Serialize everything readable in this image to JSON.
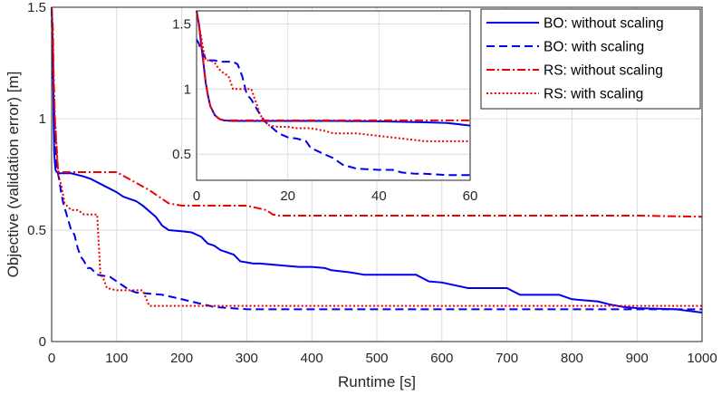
{
  "chart_data": [
    {
      "id": "main",
      "type": "line",
      "title": "",
      "xlabel": "Runtime [s]",
      "ylabel": "Objective (validation error) [m]",
      "xlim": [
        0,
        1000
      ],
      "ylim": [
        0,
        1.5
      ],
      "xticks": [
        0,
        100,
        200,
        300,
        400,
        500,
        600,
        700,
        800,
        900,
        1000
      ],
      "yticks": [
        0,
        0.5,
        1,
        1.5
      ],
      "ytick_labels": [
        "0",
        "0.5",
        "1",
        "1.5"
      ],
      "grid": true,
      "series": [
        {
          "name": "BO: without scaling",
          "color": "#0000ee",
          "dash": "solid",
          "x": [
            0,
            2,
            3,
            4,
            5,
            6,
            8,
            10,
            30,
            50,
            60,
            80,
            100,
            110,
            130,
            140,
            160,
            170,
            180,
            200,
            215,
            230,
            240,
            250,
            260,
            270,
            280,
            290,
            300,
            310,
            320,
            340,
            360,
            380,
            400,
            420,
            430,
            460,
            480,
            500,
            560,
            580,
            600,
            640,
            650,
            700,
            720,
            780,
            800,
            840,
            860,
            880,
            900,
            960,
            1000
          ],
          "y": [
            1.5,
            1.3,
            1.0,
            0.85,
            0.8,
            0.77,
            0.76,
            0.755,
            0.755,
            0.74,
            0.73,
            0.7,
            0.67,
            0.65,
            0.63,
            0.61,
            0.56,
            0.52,
            0.5,
            0.495,
            0.49,
            0.47,
            0.44,
            0.43,
            0.41,
            0.4,
            0.39,
            0.36,
            0.355,
            0.35,
            0.35,
            0.345,
            0.34,
            0.335,
            0.335,
            0.33,
            0.32,
            0.31,
            0.3,
            0.3,
            0.3,
            0.27,
            0.265,
            0.24,
            0.24,
            0.24,
            0.21,
            0.21,
            0.19,
            0.18,
            0.165,
            0.155,
            0.15,
            0.145,
            0.13
          ]
        },
        {
          "name": "BO: with scaling",
          "color": "#0000ee",
          "dash": "dashed",
          "x": [
            0,
            1,
            2,
            3,
            5,
            8,
            10,
            12,
            15,
            18,
            20,
            25,
            30,
            35,
            40,
            45,
            50,
            55,
            60,
            70,
            90,
            100,
            110,
            120,
            130,
            150,
            170,
            200,
            250,
            300,
            400,
            500,
            600,
            700,
            800,
            900,
            1000
          ],
          "y": [
            1.5,
            1.3,
            1.2,
            1.1,
            0.95,
            0.78,
            0.75,
            0.72,
            0.66,
            0.62,
            0.6,
            0.55,
            0.5,
            0.48,
            0.42,
            0.38,
            0.36,
            0.33,
            0.33,
            0.3,
            0.29,
            0.27,
            0.25,
            0.23,
            0.22,
            0.215,
            0.21,
            0.19,
            0.155,
            0.145,
            0.145,
            0.145,
            0.145,
            0.145,
            0.145,
            0.145,
            0.145
          ]
        },
        {
          "name": "RS: without scaling",
          "color": "#ee0000",
          "dash": "dashdot",
          "x": [
            0,
            2,
            3,
            5,
            10,
            20,
            40,
            60,
            80,
            100,
            125,
            150,
            160,
            180,
            200,
            250,
            300,
            330,
            340,
            350,
            400,
            500,
            600,
            700,
            800,
            900,
            1000
          ],
          "y": [
            1.5,
            1.4,
            1.2,
            1.0,
            0.76,
            0.76,
            0.76,
            0.76,
            0.76,
            0.76,
            0.72,
            0.68,
            0.66,
            0.62,
            0.61,
            0.61,
            0.61,
            0.59,
            0.57,
            0.565,
            0.565,
            0.565,
            0.565,
            0.565,
            0.565,
            0.565,
            0.56
          ]
        },
        {
          "name": "RS: with scaling",
          "color": "#ee0000",
          "dash": "dotted",
          "x": [
            0,
            3,
            5,
            8,
            10,
            15,
            20,
            30,
            40,
            50,
            60,
            70,
            75,
            80,
            85,
            100,
            120,
            140,
            150,
            170,
            200,
            400,
            600,
            800,
            1000
          ],
          "y": [
            1.5,
            1.2,
            1.0,
            0.85,
            0.75,
            0.7,
            0.62,
            0.59,
            0.59,
            0.57,
            0.57,
            0.57,
            0.3,
            0.28,
            0.24,
            0.23,
            0.23,
            0.23,
            0.16,
            0.16,
            0.16,
            0.16,
            0.16,
            0.16,
            0.16
          ]
        }
      ],
      "legend": {
        "position": "top-right",
        "entries": [
          "BO: without scaling",
          "BO: with scaling",
          "RS: without scaling",
          "RS: with scaling"
        ]
      }
    },
    {
      "id": "inset",
      "type": "line",
      "title": "",
      "xlabel": "",
      "ylabel": "",
      "xlim": [
        0,
        60
      ],
      "ylim": [
        0.3,
        1.6
      ],
      "xticks": [
        0,
        20,
        40,
        60
      ],
      "yticks": [
        0.5,
        1,
        1.5
      ],
      "ytick_labels": [
        "0.5",
        "1",
        "1.5"
      ],
      "grid": true,
      "series": [
        {
          "name": "BO: without scaling",
          "color": "#0000ee",
          "dash": "solid",
          "x": [
            0,
            0.5,
            1,
            1.5,
            2,
            2.5,
            3,
            4,
            5,
            6,
            8,
            10,
            20,
            30,
            40,
            50,
            55,
            60
          ],
          "y": [
            1.6,
            1.5,
            1.35,
            1.2,
            1.05,
            0.95,
            0.87,
            0.8,
            0.77,
            0.76,
            0.755,
            0.755,
            0.755,
            0.755,
            0.753,
            0.745,
            0.74,
            0.72
          ]
        },
        {
          "name": "BO: with scaling",
          "color": "#0000ee",
          "dash": "dashed",
          "x": [
            0,
            0.5,
            1,
            1.5,
            2,
            3,
            4,
            5,
            6,
            7,
            8,
            9,
            10,
            11,
            12,
            13,
            14,
            15,
            16,
            18,
            20,
            22,
            24,
            25,
            28,
            30,
            32,
            35,
            40,
            43,
            45,
            48,
            50,
            55,
            60
          ],
          "y": [
            1.38,
            1.35,
            1.3,
            1.27,
            1.23,
            1.22,
            1.22,
            1.21,
            1.21,
            1.21,
            1.21,
            1.19,
            1.1,
            0.96,
            0.92,
            0.86,
            0.8,
            0.75,
            0.72,
            0.66,
            0.63,
            0.62,
            0.6,
            0.55,
            0.5,
            0.47,
            0.42,
            0.39,
            0.38,
            0.38,
            0.36,
            0.35,
            0.35,
            0.34,
            0.34
          ]
        },
        {
          "name": "RS: without scaling",
          "color": "#ee0000",
          "dash": "dashdot",
          "x": [
            0,
            0.5,
            1,
            1.5,
            2,
            2.5,
            3,
            4,
            5,
            6,
            8,
            10,
            20,
            30,
            40,
            50,
            60
          ],
          "y": [
            1.6,
            1.5,
            1.35,
            1.2,
            1.05,
            0.95,
            0.87,
            0.8,
            0.77,
            0.76,
            0.76,
            0.76,
            0.76,
            0.76,
            0.76,
            0.76,
            0.76
          ]
        },
        {
          "name": "RS: with scaling",
          "color": "#ee0000",
          "dash": "dotted",
          "x": [
            0,
            0.5,
            1,
            1.5,
            2,
            2.5,
            3,
            4,
            5,
            6,
            7,
            8,
            9,
            10,
            11,
            12,
            13,
            14,
            15,
            16,
            18,
            20,
            22,
            25,
            28,
            30,
            35,
            40,
            45,
            50,
            55,
            60
          ],
          "y": [
            1.6,
            1.5,
            1.4,
            1.3,
            1.22,
            1.22,
            1.22,
            1.2,
            1.15,
            1.12,
            1.1,
            1.0,
            1.0,
            1.0,
            1.0,
            1.0,
            0.9,
            0.8,
            0.75,
            0.72,
            0.71,
            0.71,
            0.7,
            0.7,
            0.68,
            0.66,
            0.66,
            0.64,
            0.62,
            0.6,
            0.6,
            0.6
          ]
        }
      ]
    }
  ]
}
